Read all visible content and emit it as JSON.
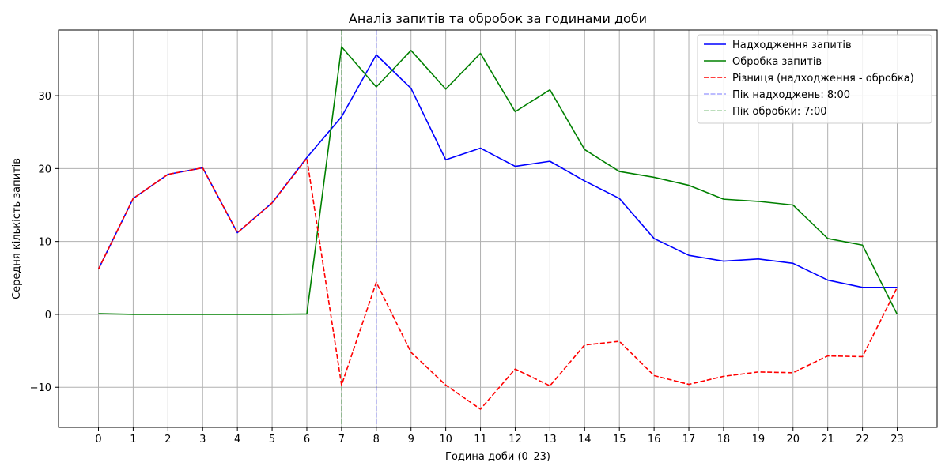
{
  "chart_data": {
    "type": "line",
    "title": "Аналіз запитів та обробок за годинами доби",
    "xlabel": "Година доби (0–23)",
    "ylabel": "Середня кількість запитів",
    "x": [
      0,
      1,
      2,
      3,
      4,
      5,
      6,
      7,
      8,
      9,
      10,
      11,
      12,
      13,
      14,
      15,
      16,
      17,
      18,
      19,
      20,
      21,
      22,
      23
    ],
    "xlim": [
      -1.15,
      24.15
    ],
    "ylim": [
      -15.5,
      39
    ],
    "yticks": [
      -10,
      0,
      10,
      20,
      30
    ],
    "ytick_labels": [
      "−10",
      "0",
      "10",
      "20",
      "30"
    ],
    "grid": true,
    "legend_position": "top-right",
    "series": [
      {
        "name": "Надходження запитів",
        "color": "#0000ff",
        "dash": "solid",
        "values": [
          6.2,
          15.9,
          19.2,
          20.1,
          11.2,
          15.3,
          21.5,
          27.1,
          35.6,
          31.0,
          21.2,
          22.8,
          20.3,
          21.0,
          18.3,
          15.9,
          10.4,
          8.1,
          7.3,
          7.6,
          7.0,
          4.7,
          3.7,
          3.7
        ]
      },
      {
        "name": "Обробка запитів",
        "color": "#008000",
        "dash": "solid",
        "values": [
          0.1,
          0.0,
          0.0,
          0.0,
          0.0,
          0.0,
          0.05,
          36.7,
          31.2,
          36.2,
          30.9,
          35.8,
          27.8,
          30.8,
          22.6,
          19.6,
          18.8,
          17.7,
          15.8,
          15.5,
          15.0,
          10.4,
          9.5,
          0.0
        ]
      },
      {
        "name": "Різниця (надходження - обробка)",
        "color": "#ff0000",
        "dash": "dashed",
        "values": [
          6.2,
          15.9,
          19.2,
          20.1,
          11.2,
          15.3,
          21.4,
          -9.7,
          4.4,
          -5.2,
          -9.7,
          -13.0,
          -7.5,
          -9.8,
          -4.2,
          -3.7,
          -8.4,
          -9.6,
          -8.5,
          -7.9,
          -8.0,
          -5.7,
          -5.8,
          3.7
        ]
      }
    ],
    "vlines": [
      {
        "name": "Пік надходжень: 8:00",
        "x": 8,
        "color": "#0000ff"
      },
      {
        "name": "Пік обробки: 7:00",
        "x": 7,
        "color": "#008000"
      }
    ]
  }
}
